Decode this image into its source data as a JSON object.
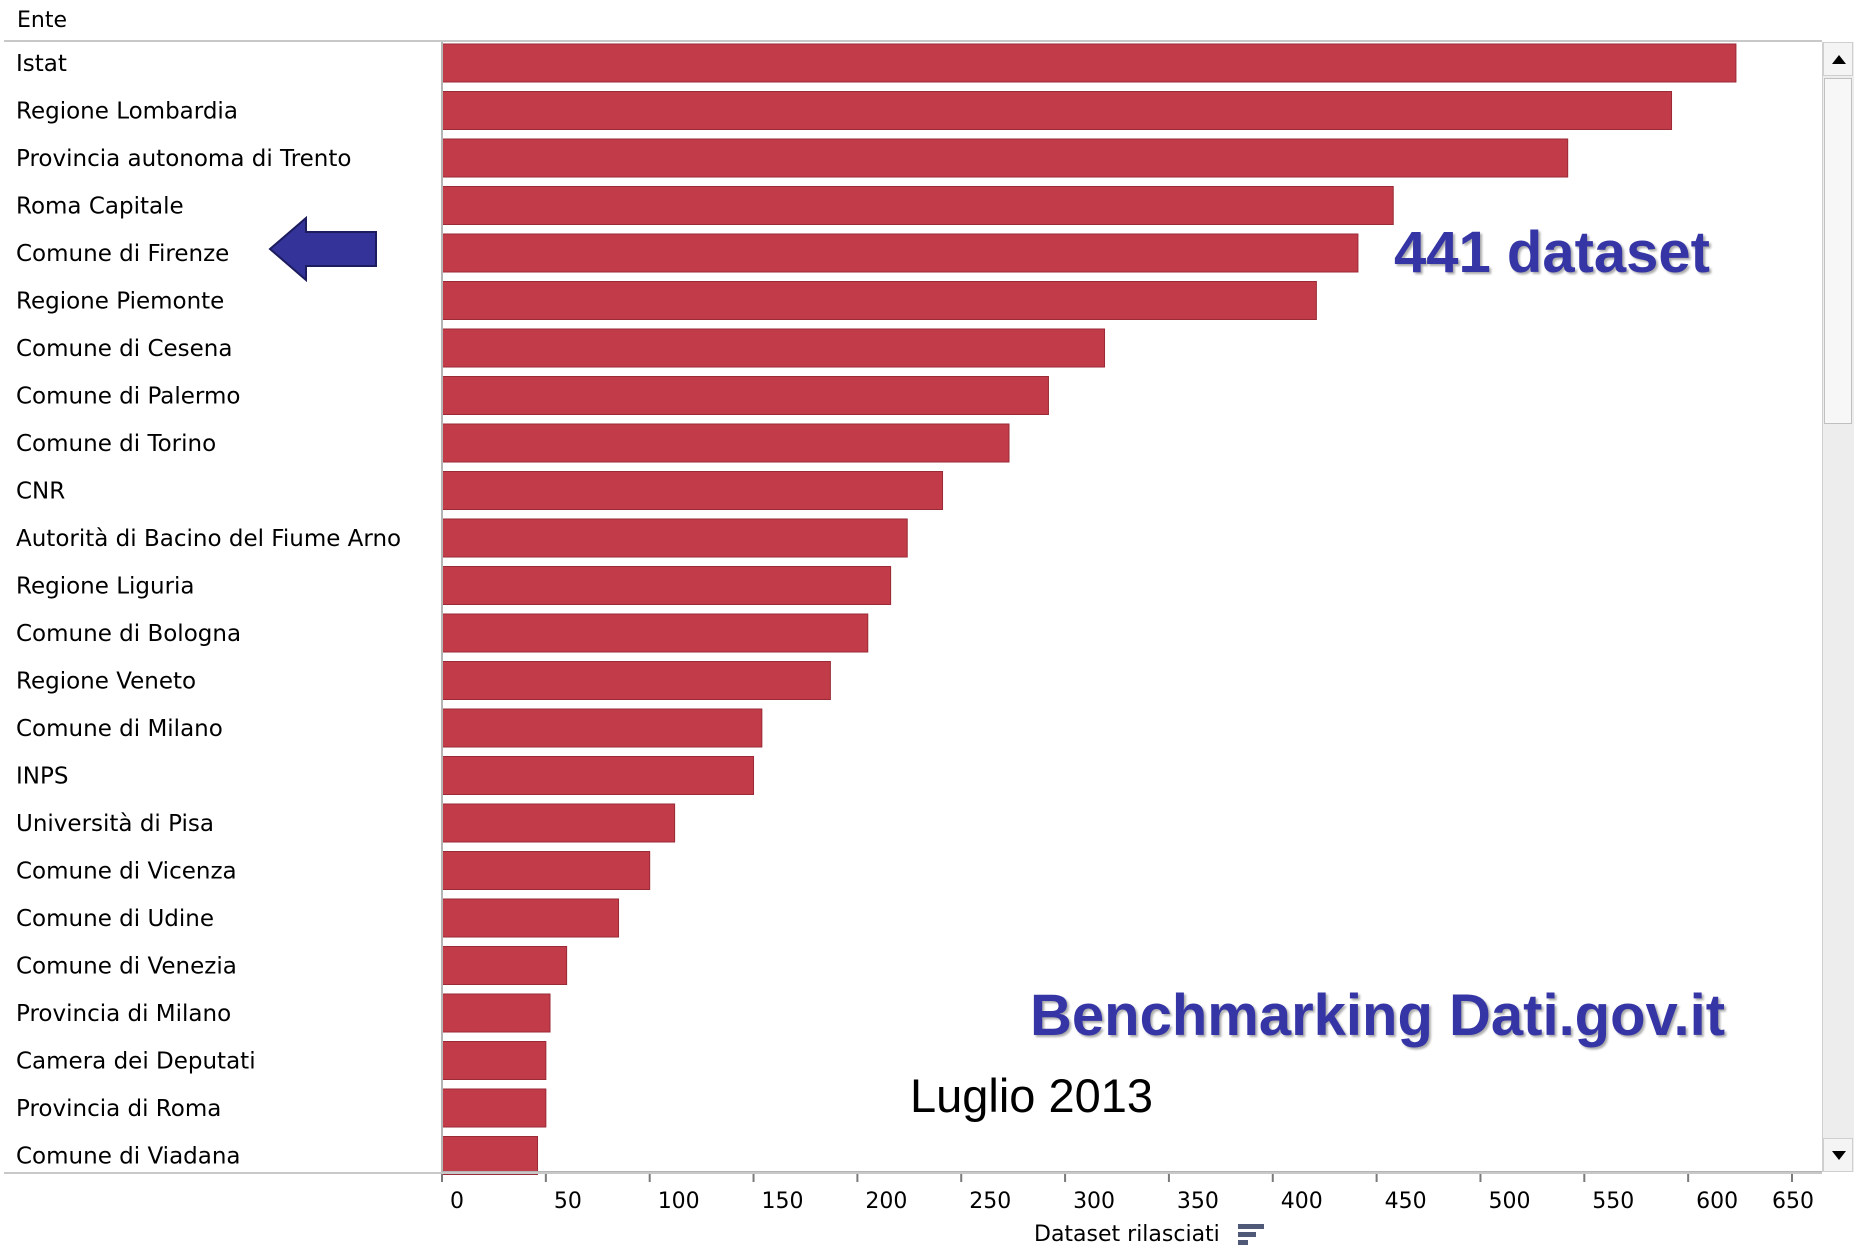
{
  "header": {
    "column_label": "Ente"
  },
  "annotations": {
    "highlight_count": "441 dataset",
    "title": "Benchmarking Dati.gov.it",
    "date": "Luglio 2013"
  },
  "icons": {
    "highlight_arrow": "left-arrow-icon",
    "sort": "sort-descending-icon"
  },
  "colors": {
    "bar": "#c13c48",
    "annotation": "#3535a6",
    "arrow": "#33339a"
  },
  "chart_data": {
    "type": "bar",
    "orientation": "horizontal",
    "title": "",
    "xlabel": "Dataset rilasciati",
    "ylabel": "Ente",
    "xlim": [
      0,
      650
    ],
    "xticks": [
      0,
      50,
      100,
      150,
      200,
      250,
      300,
      350,
      400,
      450,
      500,
      550,
      600,
      650
    ],
    "grid": false,
    "highlight": "Comune di Firenze",
    "categories": [
      "Istat",
      "Regione Lombardia",
      "Provincia autonoma di Trento",
      "Roma Capitale",
      "Comune di Firenze",
      "Regione Piemonte",
      "Comune di Cesena",
      "Comune di Palermo",
      "Comune di Torino",
      "CNR",
      "Autorità di Bacino del Fiume Arno",
      "Regione Liguria",
      "Comune di Bologna",
      "Regione Veneto",
      "Comune di Milano",
      "INPS",
      "Università di Pisa",
      "Comune di Vicenza",
      "Comune di Udine",
      "Comune di Venezia",
      "Provincia di Milano",
      "Camera dei Deputati",
      "Provincia di Roma",
      "Comune di Viadana"
    ],
    "values": [
      623,
      592,
      542,
      458,
      441,
      421,
      319,
      292,
      273,
      241,
      224,
      216,
      205,
      187,
      154,
      150,
      112,
      100,
      85,
      60,
      52,
      50,
      50,
      46
    ]
  }
}
